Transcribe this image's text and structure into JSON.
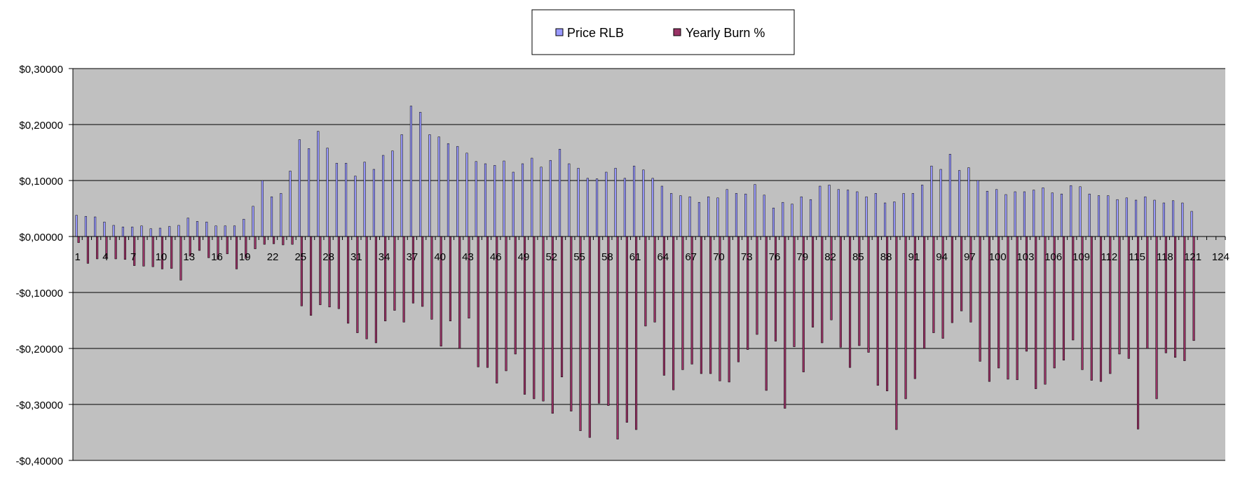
{
  "legend": {
    "items": [
      {
        "label": "Price RLB",
        "color": "#9999ff"
      },
      {
        "label": "Yearly Burn %",
        "color": "#993366"
      }
    ]
  },
  "chart_data": {
    "type": "bar",
    "title": "",
    "xlabel": "",
    "ylabel": "",
    "ylim": [
      -0.4,
      0.3
    ],
    "y_ticks": [
      0.3,
      0.2,
      0.1,
      0.0,
      -0.1,
      -0.2,
      -0.3,
      -0.4
    ],
    "y_tick_labels": [
      "$0,30000",
      "$0,20000",
      "$0,10000",
      "$0,00000",
      "-$0,10000",
      "-$0,20000",
      "-$0,30000",
      "-$0,40000"
    ],
    "x_range": [
      1,
      124
    ],
    "x_tick_labels": [
      "1",
      "4",
      "7",
      "10",
      "13",
      "16",
      "19",
      "22",
      "25",
      "28",
      "31",
      "34",
      "37",
      "40",
      "43",
      "46",
      "49",
      "52",
      "55",
      "58",
      "61",
      "64",
      "67",
      "70",
      "73",
      "76",
      "79",
      "82",
      "85",
      "88",
      "91",
      "94",
      "97",
      "100",
      "103",
      "106",
      "109",
      "112",
      "115",
      "118",
      "121",
      "124"
    ],
    "grid": "horizontal",
    "legend_position": "top",
    "plot_background": "#c0c0c0",
    "series": [
      {
        "name": "Price RLB",
        "color": "#9999ff",
        "values": [
          0.038,
          0.036,
          0.035,
          0.026,
          0.02,
          0.017,
          0.017,
          0.019,
          0.014,
          0.015,
          0.018,
          0.02,
          0.033,
          0.027,
          0.026,
          0.019,
          0.019,
          0.019,
          0.031,
          0.054,
          0.1,
          0.071,
          0.077,
          0.117,
          0.173,
          0.157,
          0.188,
          0.158,
          0.131,
          0.131,
          0.108,
          0.133,
          0.12,
          0.145,
          0.153,
          0.182,
          0.233,
          0.222,
          0.182,
          0.178,
          0.166,
          0.161,
          0.149,
          0.134,
          0.13,
          0.127,
          0.135,
          0.115,
          0.13,
          0.14,
          0.124,
          0.136,
          0.156,
          0.13,
          0.122,
          0.104,
          0.103,
          0.115,
          0.122,
          0.104,
          0.126,
          0.119,
          0.104,
          0.09,
          0.077,
          0.073,
          0.071,
          0.061,
          0.071,
          0.069,
          0.084,
          0.077,
          0.076,
          0.093,
          0.074,
          0.051,
          0.061,
          0.058,
          0.071,
          0.066,
          0.09,
          0.092,
          0.084,
          0.083,
          0.08,
          0.071,
          0.077,
          0.06,
          0.062,
          0.077,
          0.077,
          0.092,
          0.126,
          0.12,
          0.147,
          0.118,
          0.123,
          0.1,
          0.081,
          0.084,
          0.075,
          0.08,
          0.08,
          0.083,
          0.087,
          0.078,
          0.076,
          0.091,
          0.089,
          0.076,
          0.073,
          0.073,
          0.066,
          0.069,
          0.065,
          0.071,
          0.065,
          0.06,
          0.064,
          0.06,
          0.045
        ]
      },
      {
        "name": "Yearly Burn %",
        "color": "#993366",
        "values": [
          -0.011,
          -0.048,
          -0.04,
          -0.039,
          -0.04,
          -0.041,
          -0.052,
          -0.053,
          -0.054,
          -0.058,
          -0.057,
          -0.078,
          -0.035,
          -0.025,
          -0.038,
          -0.041,
          -0.031,
          -0.058,
          -0.039,
          -0.022,
          -0.014,
          -0.013,
          -0.015,
          -0.014,
          -0.124,
          -0.141,
          -0.122,
          -0.126,
          -0.129,
          -0.155,
          -0.172,
          -0.183,
          -0.19,
          -0.151,
          -0.132,
          -0.153,
          -0.119,
          -0.125,
          -0.148,
          -0.196,
          -0.151,
          -0.2,
          -0.146,
          -0.233,
          -0.234,
          -0.262,
          -0.24,
          -0.21,
          -0.282,
          -0.29,
          -0.294,
          -0.316,
          -0.251,
          -0.312,
          -0.347,
          -0.359,
          -0.298,
          -0.302,
          -0.362,
          -0.332,
          -0.345,
          -0.16,
          -0.153,
          -0.248,
          -0.274,
          -0.238,
          -0.228,
          -0.245,
          -0.245,
          -0.258,
          -0.26,
          -0.224,
          -0.202,
          -0.175,
          -0.275,
          -0.187,
          -0.307,
          -0.197,
          -0.242,
          -0.162,
          -0.19,
          -0.149,
          -0.198,
          -0.234,
          -0.195,
          -0.207,
          -0.266,
          -0.276,
          -0.345,
          -0.29,
          -0.254,
          -0.2,
          -0.172,
          -0.182,
          -0.154,
          -0.133,
          -0.153,
          -0.223,
          -0.259,
          -0.235,
          -0.255,
          -0.256,
          -0.205,
          -0.272,
          -0.264,
          -0.235,
          -0.221,
          -0.185,
          -0.238,
          -0.257,
          -0.259,
          -0.245,
          -0.21,
          -0.218,
          -0.344,
          -0.2,
          -0.29,
          -0.208,
          -0.216,
          -0.222,
          -0.186
        ]
      }
    ]
  }
}
